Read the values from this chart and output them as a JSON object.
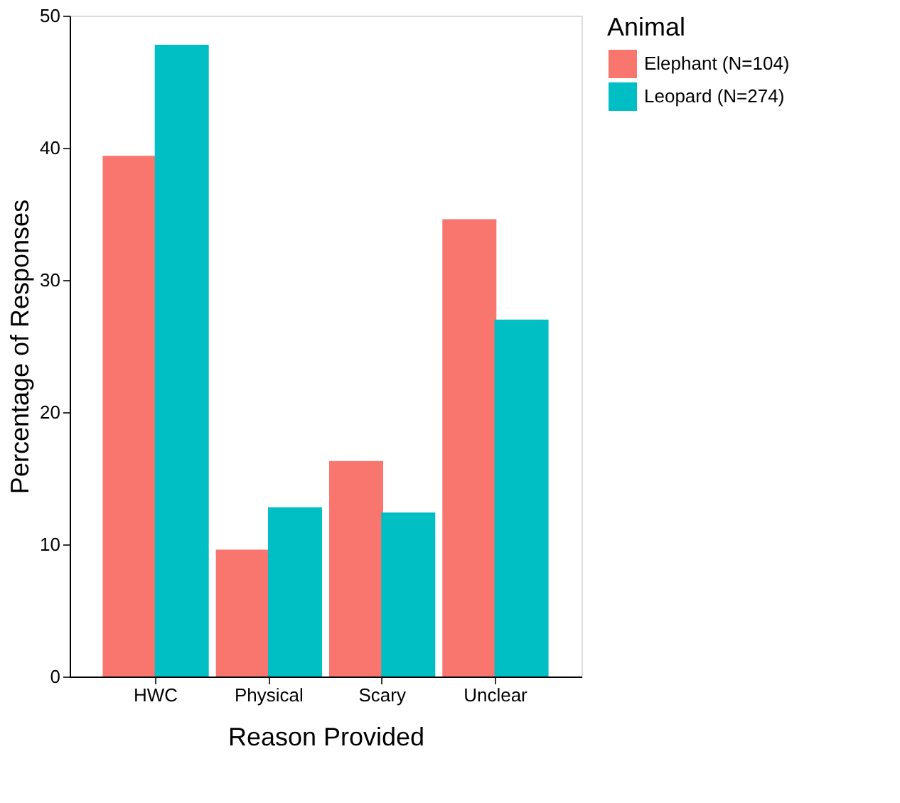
{
  "chart_data": {
    "type": "bar",
    "xlabel": "Reason Provided",
    "ylabel": "Percentage of Responses",
    "legend_title": "Animal",
    "categories": [
      "HWC",
      "Physical",
      "Scary",
      "Unclear"
    ],
    "series": [
      {
        "name": "Elephant (N=104)",
        "color": "#f8766d",
        "values": [
          39.4,
          9.6,
          16.3,
          34.6
        ]
      },
      {
        "name": "Leopard (N=274)",
        "color": "#00bfc4",
        "values": [
          47.8,
          12.8,
          12.4,
          27.0
        ]
      }
    ],
    "ylim": [
      0,
      50
    ],
    "yticks": [
      0,
      10,
      20,
      30,
      40,
      50
    ],
    "grid": false,
    "legend": "right"
  }
}
